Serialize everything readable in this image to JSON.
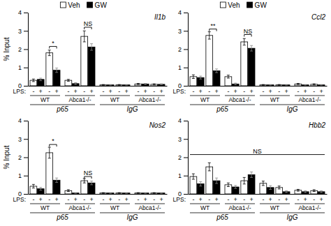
{
  "chart_data": [
    {
      "type": "bar",
      "title": "Il1b",
      "ylabel": "% Input",
      "categories": [
        null,
        null,
        null,
        null,
        null,
        null,
        null,
        null
      ],
      "series": [
        {
          "name": "Veh",
          "color": "white",
          "values": [
            0.3,
            1.8,
            0.3,
            2.7,
            0.05,
            0.05,
            0.1,
            0.08
          ],
          "errors": [
            0.07,
            0.15,
            0.05,
            0.3,
            0.02,
            0.02,
            0.03,
            0.03
          ],
          "bar_labels": [
            "-",
            "-",
            "-",
            "-",
            "-",
            "-",
            "-",
            "-"
          ]
        },
        {
          "name": "GW",
          "color": "black",
          "values": [
            0.35,
            0.85,
            0.12,
            2.12,
            0.05,
            0.05,
            0.1,
            0.08
          ],
          "errors": [
            0.07,
            0.12,
            0.05,
            0.18,
            0.02,
            0.02,
            0.03,
            0.03
          ],
          "bar_labels": [
            "+",
            "+",
            "+",
            "+",
            "+",
            "+",
            "+",
            "+"
          ]
        }
      ],
      "bar_label_title": "LPS:",
      "group_labels": [
        "WT",
        "Abca1-/-",
        "WT",
        "Abca1-/-"
      ],
      "major_labels": [
        "p65",
        "IgG"
      ],
      "brackets": [
        {
          "category": 1,
          "y": 2.15,
          "label": "*"
        },
        {
          "category": 3,
          "y": 3.2,
          "label": "NS"
        }
      ],
      "ylim": [
        0,
        4
      ],
      "yticks": [
        0,
        1,
        2,
        3,
        4
      ],
      "legend": "top"
    },
    {
      "type": "bar",
      "title": "Ccl2",
      "categories": [
        null,
        null,
        null,
        null,
        null,
        null,
        null,
        null
      ],
      "series": [
        {
          "name": "Veh",
          "color": "white",
          "values": [
            0.5,
            2.75,
            0.5,
            2.4,
            0.05,
            0.05,
            0.1,
            0.08
          ],
          "errors": [
            0.1,
            0.2,
            0.08,
            0.18,
            0.02,
            0.02,
            0.03,
            0.03
          ],
          "bar_labels": [
            "-",
            "-",
            "-",
            "-",
            "-",
            "-",
            "-",
            "-"
          ]
        },
        {
          "name": "GW",
          "color": "black",
          "values": [
            0.45,
            0.82,
            0.1,
            2.05,
            0.05,
            0.05,
            0.05,
            0.05
          ],
          "errors": [
            0.08,
            0.1,
            0.05,
            0.15,
            0.02,
            0.02,
            0.02,
            0.02
          ],
          "bar_labels": [
            "+",
            "+",
            "+",
            "+",
            "+",
            "+",
            "+",
            "+"
          ]
        }
      ],
      "bar_label_title": "LPS:",
      "group_labels": [
        "WT",
        "Abca1-/-",
        "WT",
        "Abca1-/-"
      ],
      "major_labels": [
        "p65",
        "IgG"
      ],
      "brackets": [
        {
          "category": 1,
          "y": 3.1,
          "label": "**"
        },
        {
          "category": 3,
          "y": 2.8,
          "label": "NS"
        }
      ],
      "ylim": [
        0,
        4
      ],
      "yticks": [
        0,
        1,
        2,
        3,
        4
      ],
      "legend": "top"
    },
    {
      "type": "bar",
      "title": "Nos2",
      "ylabel": "% Input",
      "categories": [
        null,
        null,
        null,
        null,
        null,
        null,
        null,
        null
      ],
      "series": [
        {
          "name": "Veh",
          "color": "white",
          "values": [
            0.42,
            2.25,
            0.18,
            0.72,
            0.05,
            0.05,
            0.05,
            0.05
          ],
          "errors": [
            0.1,
            0.3,
            0.05,
            0.12,
            0.02,
            0.02,
            0.02,
            0.02
          ],
          "bar_labels": [
            "-",
            "-",
            "-",
            "-",
            "-",
            "-",
            "-",
            "-"
          ]
        },
        {
          "name": "GW",
          "color": "black",
          "values": [
            0.28,
            0.75,
            0.05,
            0.6,
            0.05,
            0.05,
            0.05,
            0.05
          ],
          "errors": [
            0.08,
            0.12,
            0.02,
            0.1,
            0.02,
            0.02,
            0.02,
            0.02
          ],
          "bar_labels": [
            "+",
            "+",
            "+",
            "+",
            "+",
            "+",
            "+",
            "+"
          ]
        }
      ],
      "bar_label_title": "LPS:",
      "group_labels": [
        "WT",
        "Abca1-/-",
        "WT",
        "Abca1-/-"
      ],
      "major_labels": [
        "p65",
        "IgG"
      ],
      "brackets": [
        {
          "category": 1,
          "y": 2.7,
          "label": "*"
        },
        {
          "category": 3,
          "y": 0.95,
          "label": "NS"
        }
      ],
      "ylim": [
        0,
        4
      ],
      "yticks": [
        0,
        1,
        2,
        3,
        4
      ]
    },
    {
      "type": "bar",
      "title": "Hbb2",
      "categories": [
        null,
        null,
        null,
        null,
        null,
        null,
        null,
        null
      ],
      "series": [
        {
          "name": "Veh",
          "color": "white",
          "values": [
            0.95,
            1.48,
            0.5,
            0.72,
            0.58,
            0.35,
            0.2,
            0.18
          ],
          "errors": [
            0.15,
            0.22,
            0.1,
            0.18,
            0.12,
            0.08,
            0.05,
            0.05
          ],
          "bar_labels": [
            "-",
            "-",
            "-",
            "-",
            "-",
            "-",
            "-",
            "-"
          ]
        },
        {
          "name": "GW",
          "color": "black",
          "values": [
            0.55,
            0.72,
            0.38,
            1.05,
            0.35,
            0.12,
            0.12,
            0.12
          ],
          "errors": [
            0.12,
            0.15,
            0.08,
            0.15,
            0.1,
            0.05,
            0.05,
            0.05
          ],
          "bar_labels": [
            "+",
            "+",
            "+",
            "+",
            "+",
            "+",
            "+",
            "+"
          ]
        }
      ],
      "bar_label_title": "LPS:",
      "group_labels": [
        "WT",
        "Abca1-/-",
        "WT",
        "Abca1-/-"
      ],
      "major_labels": [
        "p65",
        "IgG"
      ],
      "brackets": [
        {
          "y": 2.15,
          "label": "NS"
        }
      ],
      "ylim": [
        0,
        4
      ],
      "yticks": [
        0,
        1,
        2,
        3,
        4
      ]
    }
  ]
}
